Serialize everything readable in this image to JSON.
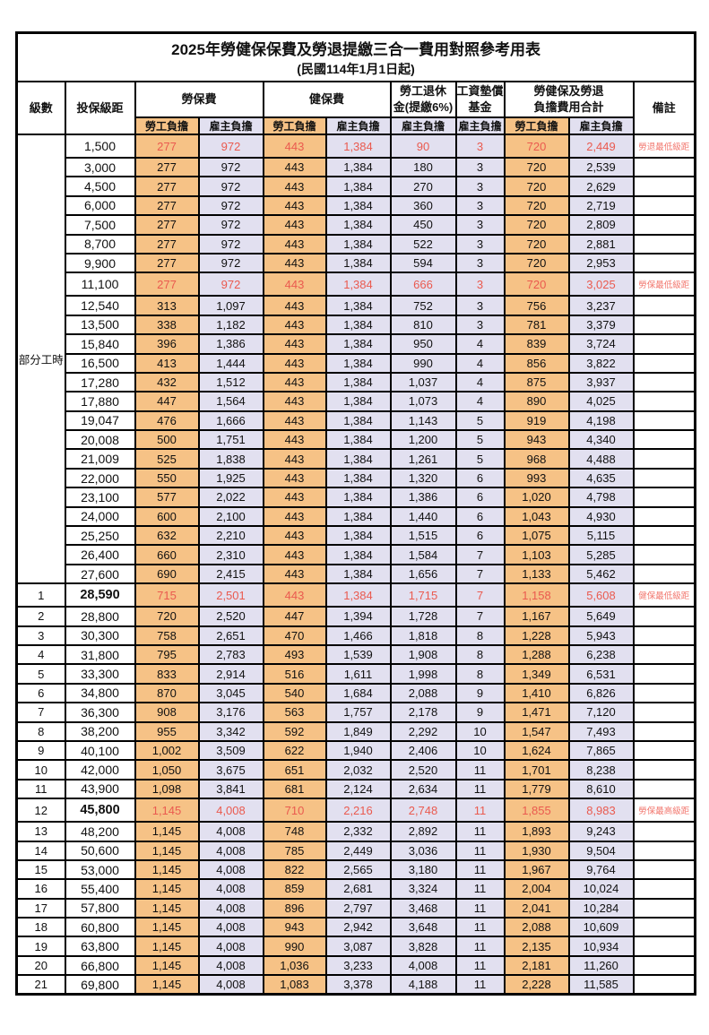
{
  "title": {
    "line1": "2025年勞健保保費及勞退提繳三合一費用對照參考用表",
    "line2": "(民國114年1月1日起)"
  },
  "colors": {
    "employee_bg": "#f6c286",
    "employer_bg": "#e2e0f0",
    "highlight_text": "#ea5a4f",
    "note_text": "#f2776e"
  },
  "header": {
    "level": "級數",
    "bracket": "投保級距",
    "labor": "勞保費",
    "health": "健保費",
    "pension": "勞工退休\n金(提繳6%)",
    "wage_fund": "工資墊償\n基金",
    "total": "勞健保及勞退\n負擔費用合計",
    "note": "備註",
    "employee": "勞工負擔",
    "employer": "雇主負擔"
  },
  "rows": [
    {
      "in_group": true,
      "group_label": "部分工時",
      "group_span": 23,
      "bracket": "1,500",
      "v": [
        "277",
        "972",
        "443",
        "1,384",
        "90",
        "3",
        "720",
        "2,449"
      ],
      "note": "勞退最低級距",
      "red": true
    },
    {
      "in_group": true,
      "bracket": "3,000",
      "v": [
        "277",
        "972",
        "443",
        "1,384",
        "180",
        "3",
        "720",
        "2,539"
      ]
    },
    {
      "in_group": true,
      "bracket": "4,500",
      "v": [
        "277",
        "972",
        "443",
        "1,384",
        "270",
        "3",
        "720",
        "2,629"
      ]
    },
    {
      "in_group": true,
      "bracket": "6,000",
      "v": [
        "277",
        "972",
        "443",
        "1,384",
        "360",
        "3",
        "720",
        "2,719"
      ]
    },
    {
      "in_group": true,
      "bracket": "7,500",
      "v": [
        "277",
        "972",
        "443",
        "1,384",
        "450",
        "3",
        "720",
        "2,809"
      ]
    },
    {
      "in_group": true,
      "bracket": "8,700",
      "v": [
        "277",
        "972",
        "443",
        "1,384",
        "522",
        "3",
        "720",
        "2,881"
      ]
    },
    {
      "in_group": true,
      "bracket": "9,900",
      "v": [
        "277",
        "972",
        "443",
        "1,384",
        "594",
        "3",
        "720",
        "2,953"
      ]
    },
    {
      "in_group": true,
      "bracket": "11,100",
      "v": [
        "277",
        "972",
        "443",
        "1,384",
        "666",
        "3",
        "720",
        "3,025"
      ],
      "note": "勞保最低級距",
      "red": true
    },
    {
      "in_group": true,
      "bracket": "12,540",
      "v": [
        "313",
        "1,097",
        "443",
        "1,384",
        "752",
        "3",
        "756",
        "3,237"
      ]
    },
    {
      "in_group": true,
      "bracket": "13,500",
      "v": [
        "338",
        "1,182",
        "443",
        "1,384",
        "810",
        "3",
        "781",
        "3,379"
      ]
    },
    {
      "in_group": true,
      "bracket": "15,840",
      "v": [
        "396",
        "1,386",
        "443",
        "1,384",
        "950",
        "4",
        "839",
        "3,724"
      ]
    },
    {
      "in_group": true,
      "bracket": "16,500",
      "v": [
        "413",
        "1,444",
        "443",
        "1,384",
        "990",
        "4",
        "856",
        "3,822"
      ]
    },
    {
      "in_group": true,
      "bracket": "17,280",
      "v": [
        "432",
        "1,512",
        "443",
        "1,384",
        "1,037",
        "4",
        "875",
        "3,937"
      ]
    },
    {
      "in_group": true,
      "bracket": "17,880",
      "v": [
        "447",
        "1,564",
        "443",
        "1,384",
        "1,073",
        "4",
        "890",
        "4,025"
      ]
    },
    {
      "in_group": true,
      "bracket": "19,047",
      "v": [
        "476",
        "1,666",
        "443",
        "1,384",
        "1,143",
        "5",
        "919",
        "4,198"
      ]
    },
    {
      "in_group": true,
      "bracket": "20,008",
      "v": [
        "500",
        "1,751",
        "443",
        "1,384",
        "1,200",
        "5",
        "943",
        "4,340"
      ]
    },
    {
      "in_group": true,
      "bracket": "21,009",
      "v": [
        "525",
        "1,838",
        "443",
        "1,384",
        "1,261",
        "5",
        "968",
        "4,488"
      ]
    },
    {
      "in_group": true,
      "bracket": "22,000",
      "v": [
        "550",
        "1,925",
        "443",
        "1,384",
        "1,320",
        "6",
        "993",
        "4,635"
      ]
    },
    {
      "in_group": true,
      "bracket": "23,100",
      "v": [
        "577",
        "2,022",
        "443",
        "1,384",
        "1,386",
        "6",
        "1,020",
        "4,798"
      ]
    },
    {
      "in_group": true,
      "bracket": "24,000",
      "v": [
        "600",
        "2,100",
        "443",
        "1,384",
        "1,440",
        "6",
        "1,043",
        "4,930"
      ]
    },
    {
      "in_group": true,
      "bracket": "25,250",
      "v": [
        "632",
        "2,210",
        "443",
        "1,384",
        "1,515",
        "6",
        "1,075",
        "5,115"
      ]
    },
    {
      "in_group": true,
      "bracket": "26,400",
      "v": [
        "660",
        "2,310",
        "443",
        "1,384",
        "1,584",
        "7",
        "1,103",
        "5,285"
      ]
    },
    {
      "in_group": true,
      "bracket": "27,600",
      "v": [
        "690",
        "2,415",
        "443",
        "1,384",
        "1,656",
        "7",
        "1,133",
        "5,462"
      ]
    },
    {
      "level": "1",
      "bracket": "28,590",
      "v": [
        "715",
        "2,501",
        "443",
        "1,384",
        "1,715",
        "7",
        "1,158",
        "5,608"
      ],
      "note": "健保最低級距",
      "red": true,
      "bold": true
    },
    {
      "level": "2",
      "bracket": "28,800",
      "v": [
        "720",
        "2,520",
        "447",
        "1,394",
        "1,728",
        "7",
        "1,167",
        "5,649"
      ]
    },
    {
      "level": "3",
      "bracket": "30,300",
      "v": [
        "758",
        "2,651",
        "470",
        "1,466",
        "1,818",
        "8",
        "1,228",
        "5,943"
      ]
    },
    {
      "level": "4",
      "bracket": "31,800",
      "v": [
        "795",
        "2,783",
        "493",
        "1,539",
        "1,908",
        "8",
        "1,288",
        "6,238"
      ]
    },
    {
      "level": "5",
      "bracket": "33,300",
      "v": [
        "833",
        "2,914",
        "516",
        "1,611",
        "1,998",
        "8",
        "1,349",
        "6,531"
      ]
    },
    {
      "level": "6",
      "bracket": "34,800",
      "v": [
        "870",
        "3,045",
        "540",
        "1,684",
        "2,088",
        "9",
        "1,410",
        "6,826"
      ]
    },
    {
      "level": "7",
      "bracket": "36,300",
      "v": [
        "908",
        "3,176",
        "563",
        "1,757",
        "2,178",
        "9",
        "1,471",
        "7,120"
      ]
    },
    {
      "level": "8",
      "bracket": "38,200",
      "v": [
        "955",
        "3,342",
        "592",
        "1,849",
        "2,292",
        "10",
        "1,547",
        "7,493"
      ]
    },
    {
      "level": "9",
      "bracket": "40,100",
      "v": [
        "1,002",
        "3,509",
        "622",
        "1,940",
        "2,406",
        "10",
        "1,624",
        "7,865"
      ]
    },
    {
      "level": "10",
      "bracket": "42,000",
      "v": [
        "1,050",
        "3,675",
        "651",
        "2,032",
        "2,520",
        "11",
        "1,701",
        "8,238"
      ]
    },
    {
      "level": "11",
      "bracket": "43,900",
      "v": [
        "1,098",
        "3,841",
        "681",
        "2,124",
        "2,634",
        "11",
        "1,779",
        "8,610"
      ]
    },
    {
      "level": "12",
      "bracket": "45,800",
      "v": [
        "1,145",
        "4,008",
        "710",
        "2,216",
        "2,748",
        "11",
        "1,855",
        "8,983"
      ],
      "note": "勞保最高級距",
      "red": true,
      "bold": true
    },
    {
      "level": "13",
      "bracket": "48,200",
      "v": [
        "1,145",
        "4,008",
        "748",
        "2,332",
        "2,892",
        "11",
        "1,893",
        "9,243"
      ]
    },
    {
      "level": "14",
      "bracket": "50,600",
      "v": [
        "1,145",
        "4,008",
        "785",
        "2,449",
        "3,036",
        "11",
        "1,930",
        "9,504"
      ]
    },
    {
      "level": "15",
      "bracket": "53,000",
      "v": [
        "1,145",
        "4,008",
        "822",
        "2,565",
        "3,180",
        "11",
        "1,967",
        "9,764"
      ]
    },
    {
      "level": "16",
      "bracket": "55,400",
      "v": [
        "1,145",
        "4,008",
        "859",
        "2,681",
        "3,324",
        "11",
        "2,004",
        "10,024"
      ]
    },
    {
      "level": "17",
      "bracket": "57,800",
      "v": [
        "1,145",
        "4,008",
        "896",
        "2,797",
        "3,468",
        "11",
        "2,041",
        "10,284"
      ]
    },
    {
      "level": "18",
      "bracket": "60,800",
      "v": [
        "1,145",
        "4,008",
        "943",
        "2,942",
        "3,648",
        "11",
        "2,088",
        "10,609"
      ]
    },
    {
      "level": "19",
      "bracket": "63,800",
      "v": [
        "1,145",
        "4,008",
        "990",
        "3,087",
        "3,828",
        "11",
        "2,135",
        "10,934"
      ]
    },
    {
      "level": "20",
      "bracket": "66,800",
      "v": [
        "1,145",
        "4,008",
        "1,036",
        "3,233",
        "4,008",
        "11",
        "2,181",
        "11,260"
      ]
    },
    {
      "level": "21",
      "bracket": "69,800",
      "v": [
        "1,145",
        "4,008",
        "1,083",
        "3,378",
        "4,188",
        "11",
        "2,228",
        "11,585"
      ]
    }
  ]
}
